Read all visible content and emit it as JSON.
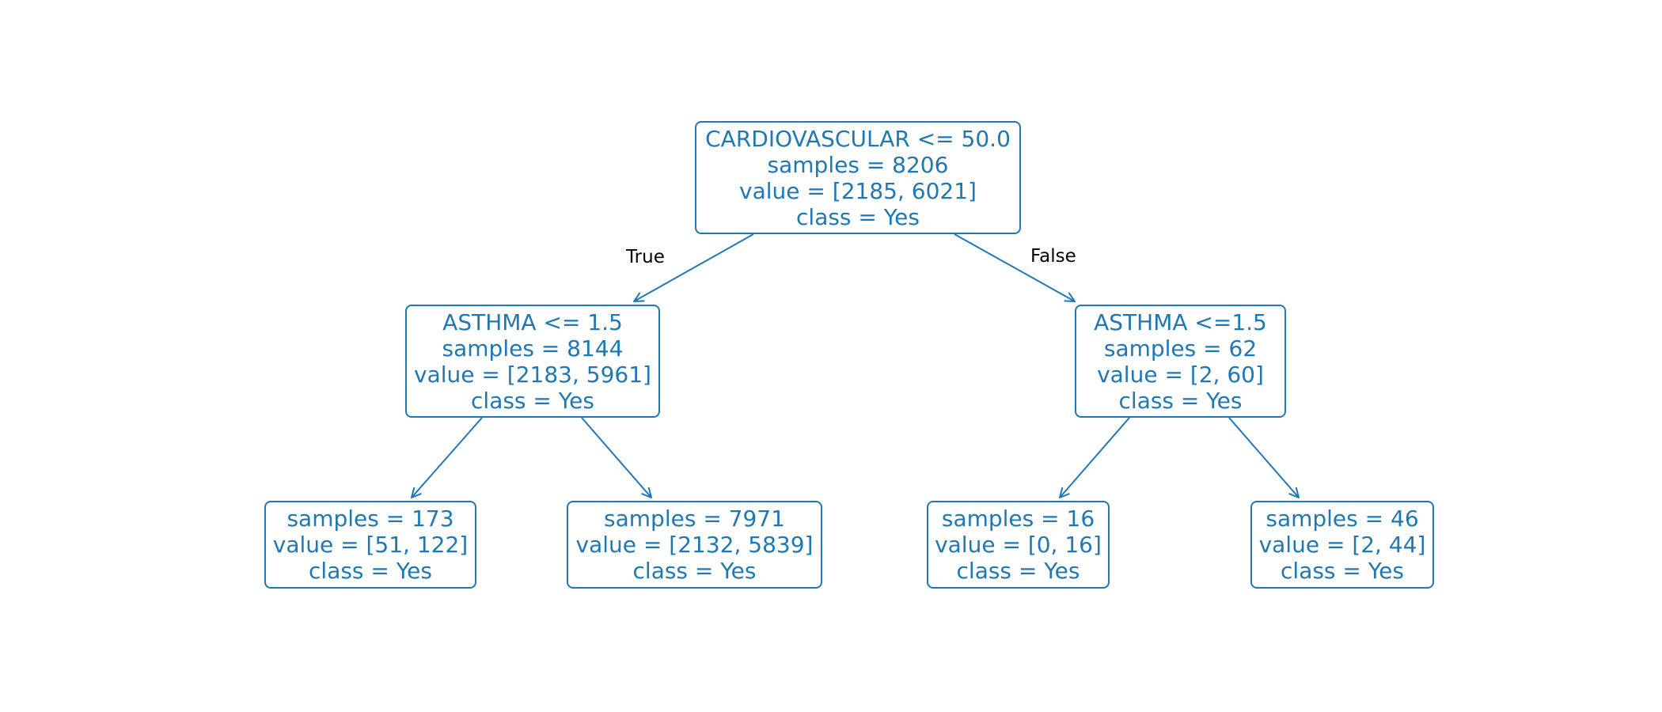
{
  "tree": {
    "colors": {
      "node_border": "#1f77b4",
      "node_text": "#1f77b4",
      "edge": "#1f77b4",
      "edge_label": "#000000",
      "background": "#ffffff"
    },
    "edge_labels": {
      "true_label": "True",
      "false_label": "False"
    },
    "nodes": {
      "root": {
        "condition": "CARDIOVASCULAR <= 50.0",
        "samples": "samples = 8206",
        "value": "value = [2185, 6021]",
        "class": "class = Yes"
      },
      "left": {
        "condition": "ASTHMA <= 1.5",
        "samples": "samples = 8144",
        "value": "value = [2183, 5961]",
        "class": "class = Yes"
      },
      "right": {
        "condition": "ASTHMA <=1.5",
        "samples": "samples = 62",
        "value": "value = [2, 60]",
        "class": "class = Yes"
      },
      "left_left": {
        "samples": "samples = 173",
        "value": "value = [51, 122]",
        "class": "class = Yes"
      },
      "left_right": {
        "samples": "samples = 7971",
        "value": "value = [2132, 5839]",
        "class": "class = Yes"
      },
      "right_left": {
        "samples": "samples = 16",
        "value": "value = [0, 16]",
        "class": "class = Yes"
      },
      "right_right": {
        "samples": "samples = 46",
        "value": "value = [2, 44]",
        "class": "class = Yes"
      }
    }
  }
}
